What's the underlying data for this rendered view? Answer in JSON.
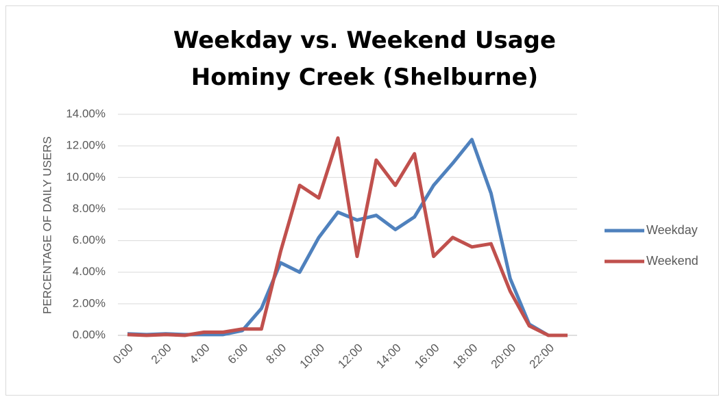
{
  "chart_data": {
    "type": "line",
    "title": [
      "Weekday vs. Weekend Usage",
      "Hominy Creek (Shelburne)"
    ],
    "y_label": "PERCENTAGE OF DAILY USERS",
    "categories": [
      "0:00",
      null,
      "2:00",
      null,
      "4:00",
      null,
      "6:00",
      null,
      "8:00",
      null,
      "10:00",
      null,
      "12:00",
      null,
      "14:00",
      null,
      "16:00",
      null,
      "18:00",
      null,
      "20:00",
      null,
      "22:00",
      null
    ],
    "series": [
      {
        "name": "Weekday",
        "color": "#4f81bd",
        "values": [
          0.1,
          0.05,
          0.1,
          0.05,
          0.05,
          0.05,
          0.3,
          1.7,
          4.6,
          4.0,
          6.2,
          7.8,
          7.3,
          7.6,
          6.7,
          7.5,
          9.5,
          10.9,
          12.4,
          9.0,
          3.6,
          0.7,
          0,
          0
        ]
      },
      {
        "name": "Weekend",
        "color": "#c0504d",
        "values": [
          0.05,
          0,
          0.05,
          0,
          0.2,
          0.2,
          0.4,
          0.4,
          5.3,
          9.5,
          8.7,
          12.5,
          5.0,
          11.1,
          9.5,
          11.5,
          5.0,
          6.2,
          5.6,
          5.8,
          2.8,
          0.6,
          0,
          0
        ]
      }
    ],
    "ylim": [
      0,
      14
    ],
    "yticks": [
      {
        "value": 0,
        "label": "0.00%"
      },
      {
        "value": 2,
        "label": "2.00%"
      },
      {
        "value": 4,
        "label": "4.00%"
      },
      {
        "value": 6,
        "label": "6.00%"
      },
      {
        "value": 8,
        "label": "8.00%"
      },
      {
        "value": 10,
        "label": "10.00%"
      },
      {
        "value": 12,
        "label": "12.00%"
      },
      {
        "value": 14,
        "label": "14.00%"
      }
    ],
    "grid": true,
    "legend": "right"
  }
}
